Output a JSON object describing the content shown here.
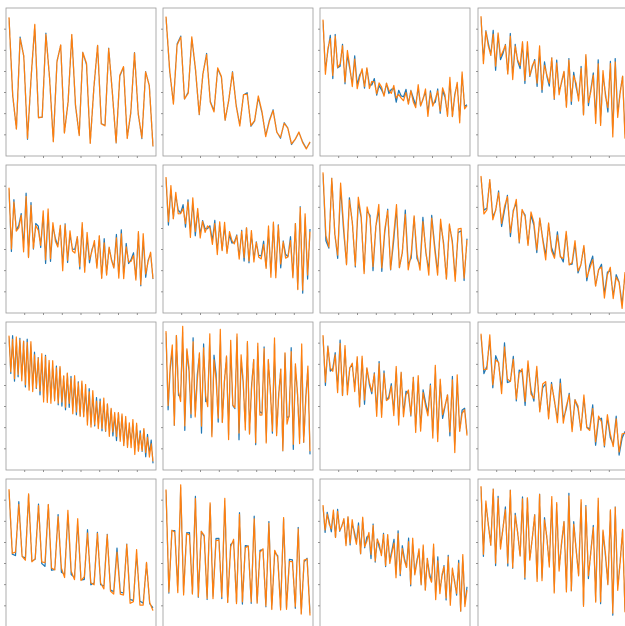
{
  "colors": {
    "series_a": "#1f77b4",
    "series_b": "#ff7f0e",
    "frame": "#9a9a9a",
    "background": "#ffffff"
  },
  "layout_grid": {
    "rows": 4,
    "cols": 4
  },
  "chart_data": [
    {
      "type": "line",
      "title": "",
      "xlabel": "",
      "ylabel": "",
      "grid": false,
      "legend": "none",
      "xlim": [
        0,
        40
      ],
      "ylim": [
        0,
        1
      ],
      "params": {
        "seed": 11,
        "n": 40,
        "period": 3.4,
        "start": 0.98,
        "end": 0.65,
        "bottom_start": 0.1,
        "bottom_end": 0.05,
        "amp_var": 0.05,
        "noise": 0.02,
        "dip": 0,
        "diff": 0.01
      }
    },
    {
      "type": "line",
      "title": "",
      "xlabel": "",
      "ylabel": "",
      "grid": false,
      "legend": "none",
      "xlim": [
        0,
        40
      ],
      "ylim": [
        0,
        1
      ],
      "params": {
        "seed": 12,
        "n": 40,
        "period": 3.6,
        "start": 0.98,
        "end": 0.08,
        "bottom_start": 0.35,
        "bottom_end": 0.02,
        "amp_var": 0.06,
        "noise": 0.02,
        "dip": 0,
        "diff": 0.01
      }
    },
    {
      "type": "line",
      "title": "",
      "xlabel": "",
      "ylabel": "",
      "grid": false,
      "legend": "none",
      "xlim": [
        0,
        60
      ],
      "ylim": [
        0,
        1
      ],
      "params": {
        "seed": 13,
        "n": 60,
        "period": 2.6,
        "start": 0.95,
        "end": 0.6,
        "bottom_start": 0.55,
        "bottom_end": 0.2,
        "amp_var": 0.08,
        "noise": 0.04,
        "dip": 0.35,
        "diff": 0.03
      }
    },
    {
      "type": "line",
      "title": "",
      "xlabel": "",
      "ylabel": "",
      "grid": false,
      "legend": "none",
      "xlim": [
        0,
        60
      ],
      "ylim": [
        0,
        1
      ],
      "params": {
        "seed": 14,
        "n": 60,
        "period": 2.4,
        "start": 0.97,
        "end": 0.7,
        "bottom_start": 0.65,
        "bottom_end": 0.1,
        "amp_var": 0.1,
        "noise": 0.04,
        "dip": 0.15,
        "diff": 0.03
      }
    },
    {
      "type": "line",
      "title": "",
      "xlabel": "",
      "ylabel": "",
      "grid": false,
      "legend": "none",
      "xlim": [
        0,
        60
      ],
      "ylim": [
        0,
        1
      ],
      "params": {
        "seed": 21,
        "n": 60,
        "period": 2.3,
        "start": 0.9,
        "end": 0.55,
        "bottom_start": 0.4,
        "bottom_end": 0.15,
        "amp_var": 0.12,
        "noise": 0.05,
        "dip": 0.15,
        "diff": 0.03
      }
    },
    {
      "type": "line",
      "title": "",
      "xlabel": "",
      "ylabel": "",
      "grid": false,
      "legend": "none",
      "xlim": [
        0,
        60
      ],
      "ylim": [
        0,
        1
      ],
      "params": {
        "seed": 22,
        "n": 60,
        "period": 2.2,
        "start": 0.95,
        "end": 0.75,
        "bottom_start": 0.6,
        "bottom_end": 0.1,
        "amp_var": 0.07,
        "noise": 0.04,
        "dip": 0.3,
        "diff": 0.03
      }
    },
    {
      "type": "line",
      "title": "",
      "xlabel": "",
      "ylabel": "",
      "grid": false,
      "legend": "none",
      "xlim": [
        0,
        50
      ],
      "ylim": [
        0,
        1
      ],
      "params": {
        "seed": 23,
        "n": 50,
        "period": 3.1,
        "start": 0.98,
        "end": 0.65,
        "bottom_start": 0.3,
        "bottom_end": 0.2,
        "amp_var": 0.05,
        "noise": 0.03,
        "dip": 0.1,
        "diff": 0.04
      }
    },
    {
      "type": "line",
      "title": "",
      "xlabel": "",
      "ylabel": "",
      "grid": false,
      "legend": "none",
      "xlim": [
        0,
        50
      ],
      "ylim": [
        0,
        1
      ],
      "params": {
        "seed": 24,
        "n": 50,
        "period": 2.9,
        "start": 0.95,
        "end": 0.25,
        "bottom_start": 0.65,
        "bottom_end": 0.03,
        "amp_var": 0.08,
        "noise": 0.03,
        "dip": 0,
        "diff": 0.03
      }
    },
    {
      "type": "line",
      "title": "",
      "xlabel": "",
      "ylabel": "",
      "grid": false,
      "legend": "none",
      "xlim": [
        0,
        80
      ],
      "ylim": [
        0,
        1
      ],
      "params": {
        "seed": 31,
        "n": 80,
        "period": 2.0,
        "start": 0.95,
        "end": 0.2,
        "bottom_start": 0.65,
        "bottom_end": 0.05,
        "amp_var": 0.08,
        "noise": 0.05,
        "dip": 0,
        "diff": 0.03
      }
    },
    {
      "type": "line",
      "title": "",
      "xlabel": "",
      "ylabel": "",
      "grid": false,
      "legend": "none",
      "xlim": [
        0,
        70
      ],
      "ylim": [
        0,
        1
      ],
      "params": {
        "seed": 32,
        "n": 70,
        "period": 2.6,
        "start": 0.98,
        "end": 0.85,
        "bottom_start": 0.3,
        "bottom_end": 0.08,
        "amp_var": 0.06,
        "noise": 0.05,
        "dip": 0,
        "diff": 0.05
      }
    },
    {
      "type": "line",
      "title": "",
      "xlabel": "",
      "ylabel": "",
      "grid": false,
      "legend": "none",
      "xlim": [
        0,
        60
      ],
      "ylim": [
        0,
        1
      ],
      "params": {
        "seed": 33,
        "n": 60,
        "period": 2.3,
        "start": 0.95,
        "end": 0.65,
        "bottom_start": 0.55,
        "bottom_end": 0.1,
        "amp_var": 0.1,
        "noise": 0.04,
        "dip": 0.1,
        "diff": 0.03
      }
    },
    {
      "type": "line",
      "title": "",
      "xlabel": "",
      "ylabel": "",
      "grid": false,
      "legend": "none",
      "xlim": [
        0,
        50
      ],
      "ylim": [
        0,
        1
      ],
      "params": {
        "seed": 34,
        "n": 50,
        "period": 2.7,
        "start": 0.95,
        "end": 0.3,
        "bottom_start": 0.6,
        "bottom_end": 0.05,
        "amp_var": 0.08,
        "noise": 0.04,
        "dip": 0,
        "diff": 0.03
      }
    },
    {
      "type": "line",
      "title": "",
      "xlabel": "",
      "ylabel": "",
      "grid": false,
      "legend": "none",
      "xlim": [
        0,
        45
      ],
      "ylim": [
        0,
        1
      ],
      "params": {
        "seed": 41,
        "n": 45,
        "period": 3.0,
        "start": 0.95,
        "end": 0.45,
        "bottom_start": 0.35,
        "bottom_end": 0.02,
        "amp_var": 0.08,
        "noise": 0.03,
        "dip": 0,
        "diff": 0.03
      }
    },
    {
      "type": "line",
      "title": "",
      "xlabel": "",
      "ylabel": "",
      "grid": false,
      "legend": "none",
      "xlim": [
        0,
        50
      ],
      "ylim": [
        0,
        1
      ],
      "params": {
        "seed": 42,
        "n": 50,
        "period": 2.5,
        "start": 0.97,
        "end": 0.65,
        "bottom_start": 0.15,
        "bottom_end": 0.02,
        "amp_var": 0.04,
        "noise": 0.03,
        "dip": 0,
        "diff": 0.02
      }
    },
    {
      "type": "line",
      "title": "",
      "xlabel": "",
      "ylabel": "",
      "grid": false,
      "legend": "none",
      "xlim": [
        0,
        70
      ],
      "ylim": [
        0,
        1
      ],
      "params": {
        "seed": 43,
        "n": 70,
        "period": 2.4,
        "start": 0.85,
        "end": 0.45,
        "bottom_start": 0.65,
        "bottom_end": 0.05,
        "amp_var": 0.08,
        "noise": 0.04,
        "dip": 0,
        "diff": 0.03
      }
    },
    {
      "type": "line",
      "title": "",
      "xlabel": "",
      "ylabel": "",
      "grid": false,
      "legend": "none",
      "xlim": [
        0,
        60
      ],
      "ylim": [
        0,
        1
      ],
      "params": {
        "seed": 44,
        "n": 60,
        "period": 2.4,
        "start": 0.98,
        "end": 0.85,
        "bottom_start": 0.45,
        "bottom_end": 0.02,
        "amp_var": 0.04,
        "noise": 0.02,
        "dip": 0,
        "diff": 0.02
      }
    }
  ]
}
